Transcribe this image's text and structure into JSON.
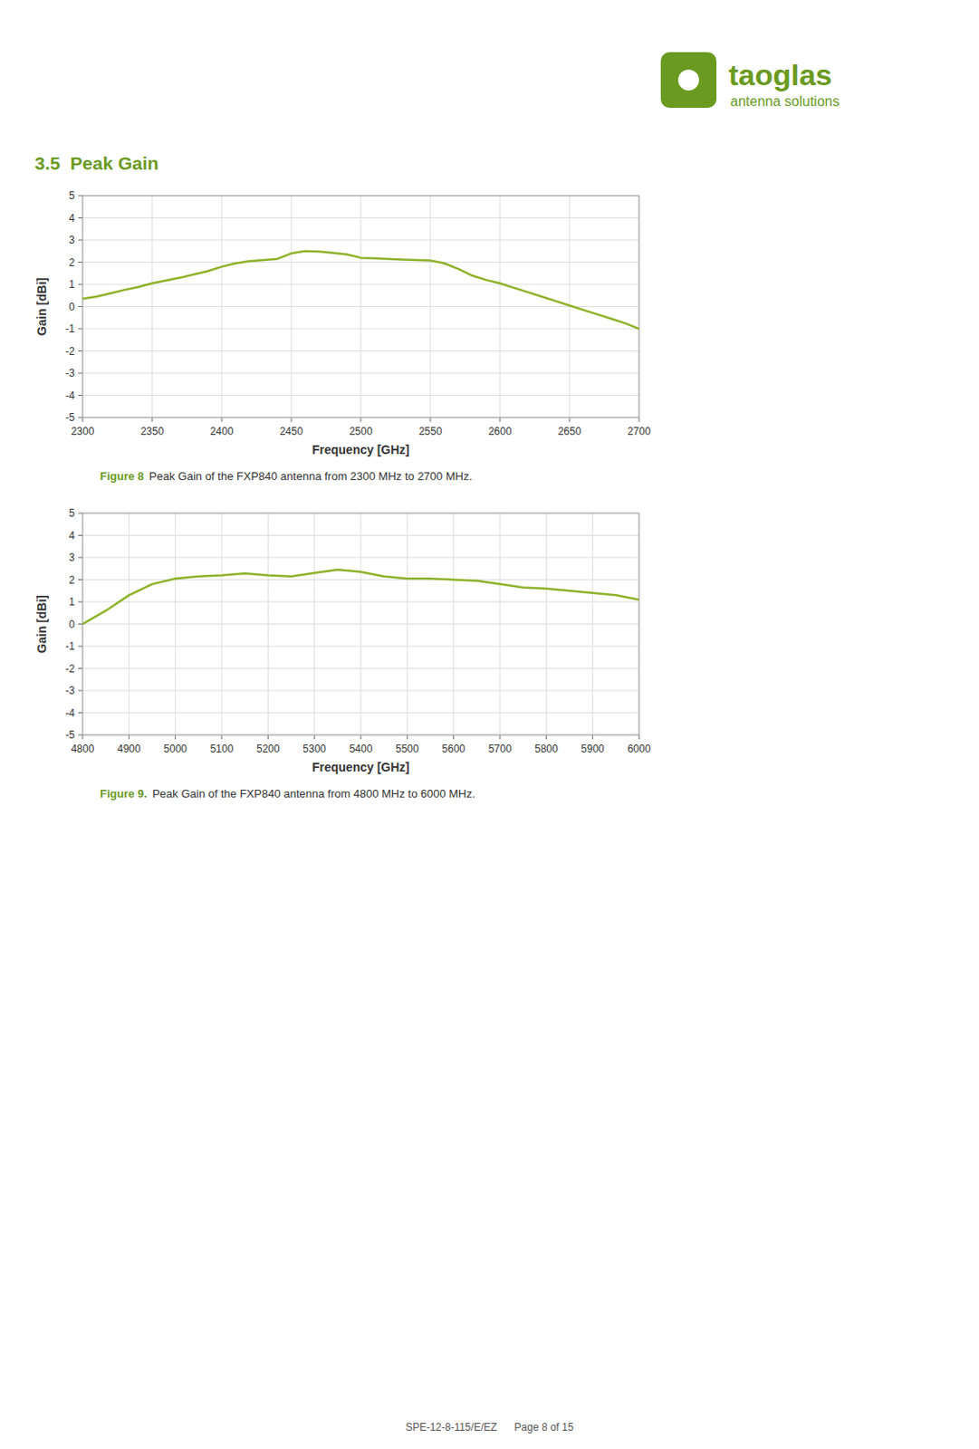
{
  "brand_color": "#6a9a1f",
  "logo_text": "taoglas",
  "logo_subtitle": "antenna solutions",
  "section_title": "3.5  Peak Gain",
  "footer": "SPE-12-8-115/E/EZ      Page 8 of 15",
  "chart_data": [
    {
      "type": "line",
      "caption_label": "Figure 8",
      "caption": "Peak Gain of the FXP840 antenna from 2300 MHz to 2700 MHz.",
      "xlabel": "Frequency [GHz]",
      "ylabel": "Gain [dBi]",
      "x": [
        2300,
        2310,
        2320,
        2330,
        2340,
        2350,
        2360,
        2370,
        2380,
        2390,
        2400,
        2410,
        2420,
        2430,
        2440,
        2450,
        2460,
        2470,
        2480,
        2490,
        2500,
        2510,
        2520,
        2530,
        2540,
        2550,
        2560,
        2570,
        2580,
        2590,
        2600,
        2610,
        2620,
        2630,
        2640,
        2650,
        2660,
        2670,
        2680,
        2690,
        2700
      ],
      "values": [
        0.35,
        0.45,
        0.6,
        0.75,
        0.88,
        1.05,
        1.18,
        1.3,
        1.45,
        1.6,
        1.8,
        1.95,
        2.05,
        2.1,
        2.15,
        2.4,
        2.5,
        2.48,
        2.42,
        2.35,
        2.2,
        2.18,
        2.15,
        2.12,
        2.1,
        2.08,
        1.95,
        1.7,
        1.4,
        1.2,
        1.05,
        0.85,
        0.65,
        0.45,
        0.25,
        0.05,
        -0.15,
        -0.35,
        -0.55,
        -0.75,
        -1.0
      ],
      "color": "#8db32a",
      "xlim": [
        2300,
        2700
      ],
      "ylim": [
        -5,
        5
      ],
      "xticks": [
        2300,
        2350,
        2400,
        2450,
        2500,
        2550,
        2600,
        2650,
        2700
      ],
      "yticks": [
        -5,
        -4,
        -3,
        -2,
        -1,
        0,
        1,
        2,
        3,
        4,
        5
      ],
      "grid": true
    },
    {
      "type": "line",
      "caption_label": "Figure 9.",
      "caption": "Peak Gain of the FXP840 antenna from 4800 MHz to 6000 MHz.",
      "xlabel": "Frequency [GHz]",
      "ylabel": "Gain [dBi]",
      "x": [
        4800,
        4850,
        4900,
        4950,
        5000,
        5050,
        5100,
        5150,
        5200,
        5250,
        5300,
        5350,
        5400,
        5450,
        5500,
        5550,
        5600,
        5650,
        5700,
        5750,
        5800,
        5850,
        5900,
        5950,
        6000
      ],
      "values": [
        0.0,
        0.6,
        1.3,
        1.8,
        2.05,
        2.15,
        2.2,
        2.28,
        2.2,
        2.15,
        2.3,
        2.45,
        2.35,
        2.15,
        2.05,
        2.05,
        2.0,
        1.95,
        1.8,
        1.65,
        1.6,
        1.5,
        1.4,
        1.3,
        1.1
      ],
      "color": "#8db32a",
      "xlim": [
        4800,
        6000
      ],
      "ylim": [
        -5,
        5
      ],
      "xticks": [
        4800,
        4900,
        5000,
        5100,
        5200,
        5300,
        5400,
        5500,
        5600,
        5700,
        5800,
        5900,
        6000
      ],
      "yticks": [
        -5,
        -4,
        -3,
        -2,
        -1,
        0,
        1,
        2,
        3,
        4,
        5
      ],
      "grid": true
    }
  ]
}
